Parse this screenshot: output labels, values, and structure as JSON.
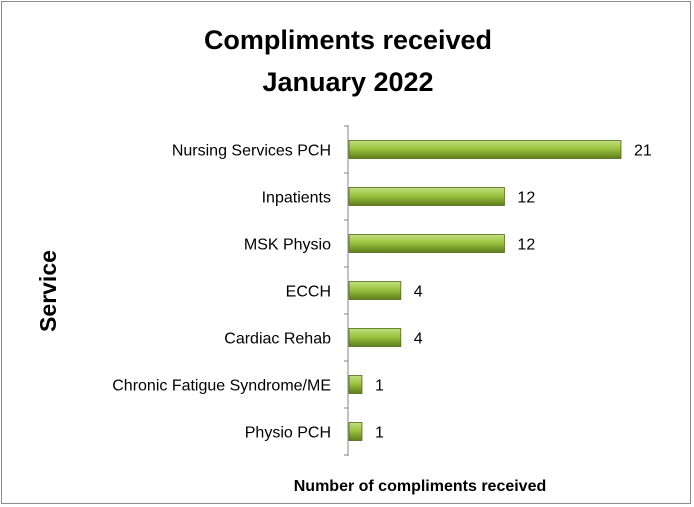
{
  "chart_data": {
    "type": "bar",
    "orientation": "horizontal",
    "title_lines": [
      "Compliments received",
      "January 2022"
    ],
    "xlabel": "Number of compliments received",
    "ylabel": "Service",
    "categories": [
      "Nursing Services PCH",
      "Inpatients",
      "MSK Physio",
      "ECCH",
      "Cardiac Rehab",
      "Chronic Fatigue Syndrome/ME",
      "Physio PCH"
    ],
    "values": [
      21,
      12,
      12,
      4,
      4,
      1,
      1
    ],
    "xlim": [
      0,
      21
    ],
    "grid": false,
    "data_labels": true,
    "colors": {
      "bar_light": "#c3df82",
      "bar_mid": "#9bc43f",
      "bar_dark": "#5e7d1c",
      "bar_border": "#4f6a15",
      "axis": "#868686"
    }
  }
}
